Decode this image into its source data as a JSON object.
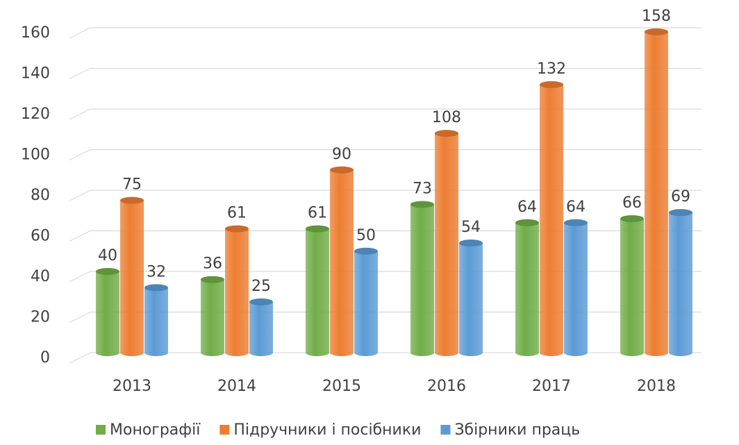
{
  "chart_data": {
    "type": "bar",
    "categories": [
      "2013",
      "2014",
      "2015",
      "2016",
      "2017",
      "2018"
    ],
    "series": [
      {
        "name": "Монографії",
        "color": "#70ad47",
        "values": [
          40,
          36,
          61,
          73,
          64,
          66
        ]
      },
      {
        "name": "Підручники і посібники",
        "color": "#ed7d31",
        "values": [
          75,
          61,
          90,
          108,
          132,
          158
        ]
      },
      {
        "name": "Збірники праць",
        "color": "#5b9bd5",
        "values": [
          32,
          25,
          50,
          54,
          64,
          69
        ]
      }
    ],
    "ylim": [
      0,
      160
    ],
    "yticks": [
      0,
      20,
      40,
      60,
      80,
      100,
      120,
      140,
      160
    ],
    "grid": true,
    "legend": "bottom"
  }
}
